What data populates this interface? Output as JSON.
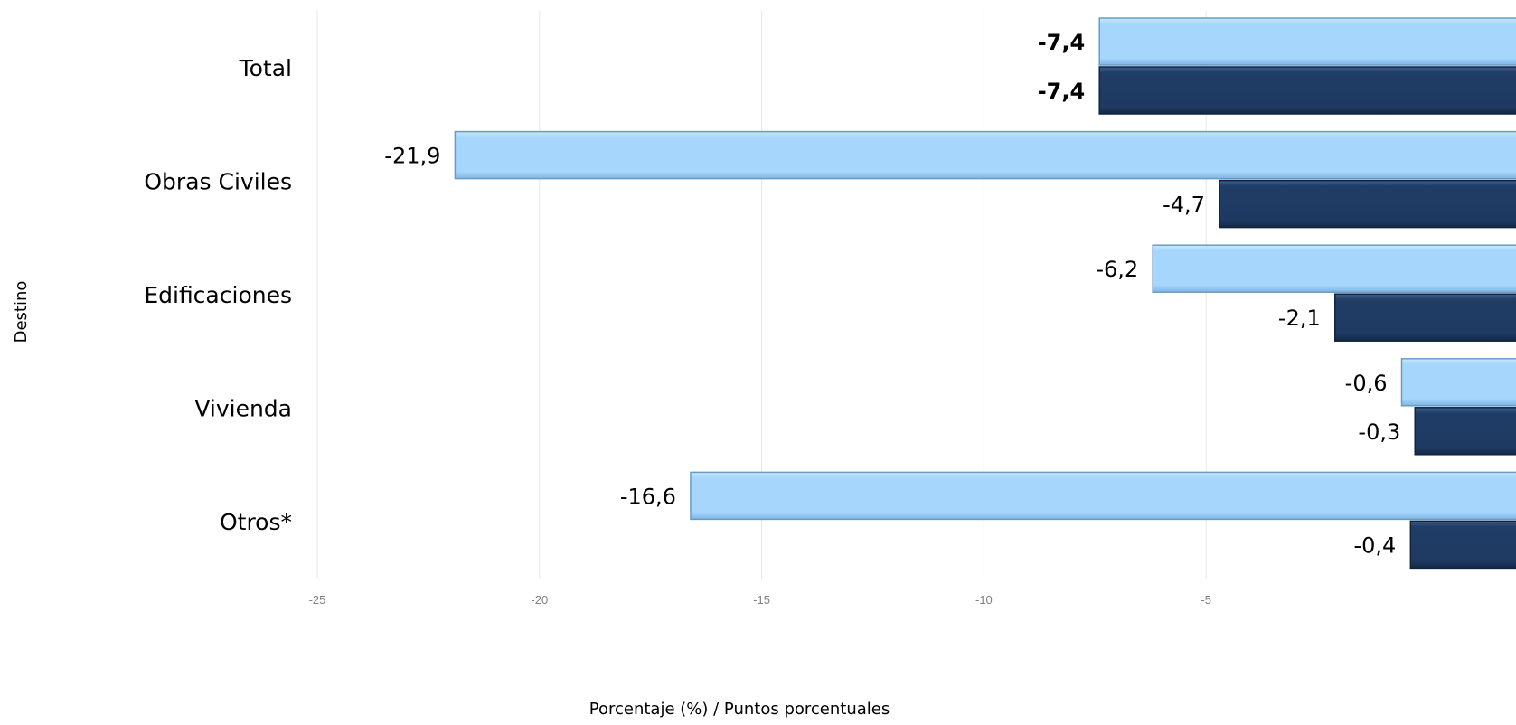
{
  "chart_data": {
    "type": "bar",
    "orientation": "horizontal",
    "categories": [
      "Total",
      "Obras Civiles",
      "Edificaciones",
      "Vivienda",
      "Otros*"
    ],
    "series": [
      {
        "values": [
          -7.4,
          -21.9,
          -6.2,
          -0.6,
          -16.6
        ],
        "labels": [
          "-7,4",
          "-21,9",
          "-6,2",
          "-0,6",
          "-16,6"
        ],
        "color": "#A6D5FB"
      },
      {
        "values": [
          -7.4,
          -4.7,
          -2.1,
          -0.3,
          -0.4
        ],
        "labels": [
          "-7,4",
          "-4,7",
          "-2,1",
          "-0,3",
          "-0,4"
        ],
        "color": "#1E3A62"
      }
    ],
    "xlabel": "Porcentaje (%) / Puntos porcentuales",
    "ylabel": "Destino",
    "xlim": [
      -25,
      0
    ],
    "xticks": [
      -25,
      -20,
      -15,
      -10,
      -5
    ],
    "grid": true,
    "bold_category": "Total"
  }
}
